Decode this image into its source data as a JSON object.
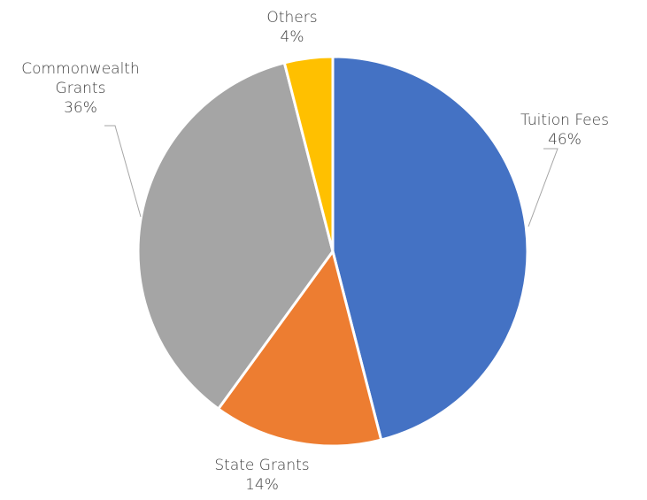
{
  "chart_data": {
    "type": "pie",
    "title": "",
    "slices": [
      {
        "category": "Tuition Fees",
        "label_lines": [
          "Tuition Fees"
        ],
        "value": 46,
        "value_text": "46%",
        "color": "#4472C4"
      },
      {
        "category": "State Grants",
        "label_lines": [
          "State Grants"
        ],
        "value": 14,
        "value_text": "14%",
        "color": "#ED7D31"
      },
      {
        "category": "Commonwealth Grants",
        "label_lines": [
          "Commonwealth",
          "Grants"
        ],
        "value": 36,
        "value_text": "36%",
        "color": "#A5A5A5"
      },
      {
        "category": "Others",
        "label_lines": [
          "Others"
        ],
        "value": 4,
        "value_text": "4%",
        "color": "#FFC000"
      }
    ],
    "start_angle_deg": 0,
    "direction": "clockwise",
    "legend": "none",
    "data_labels": "outside-with-leader-lines"
  }
}
